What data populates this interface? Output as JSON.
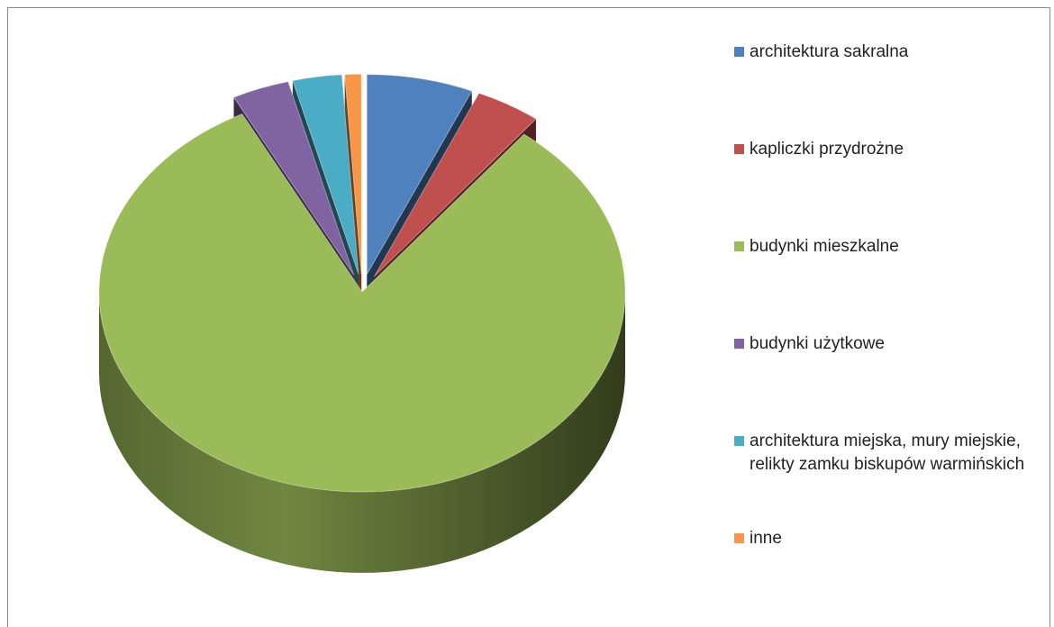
{
  "chart_data": {
    "type": "pie",
    "title": "",
    "style": "3d-exploded",
    "legend_position": "right",
    "slices": [
      {
        "label": "architektura sakralna",
        "value": 6.5,
        "color": "#4F81BD"
      },
      {
        "label": "kapliczki przydrożne",
        "value": 4.0,
        "color": "#C0504D"
      },
      {
        "label": "budynki mieszkalne",
        "value": 81.5,
        "color": "#9BBB59"
      },
      {
        "label": "budynki użytkowe",
        "value": 3.5,
        "color": "#8064A2"
      },
      {
        "label": "architektura miejska, mury miejskie, relikty zamku biskupów warmińskich",
        "value": 3.0,
        "color": "#4BACC6"
      },
      {
        "label": "inne",
        "value": 1.0,
        "color": "#F79646"
      }
    ]
  }
}
